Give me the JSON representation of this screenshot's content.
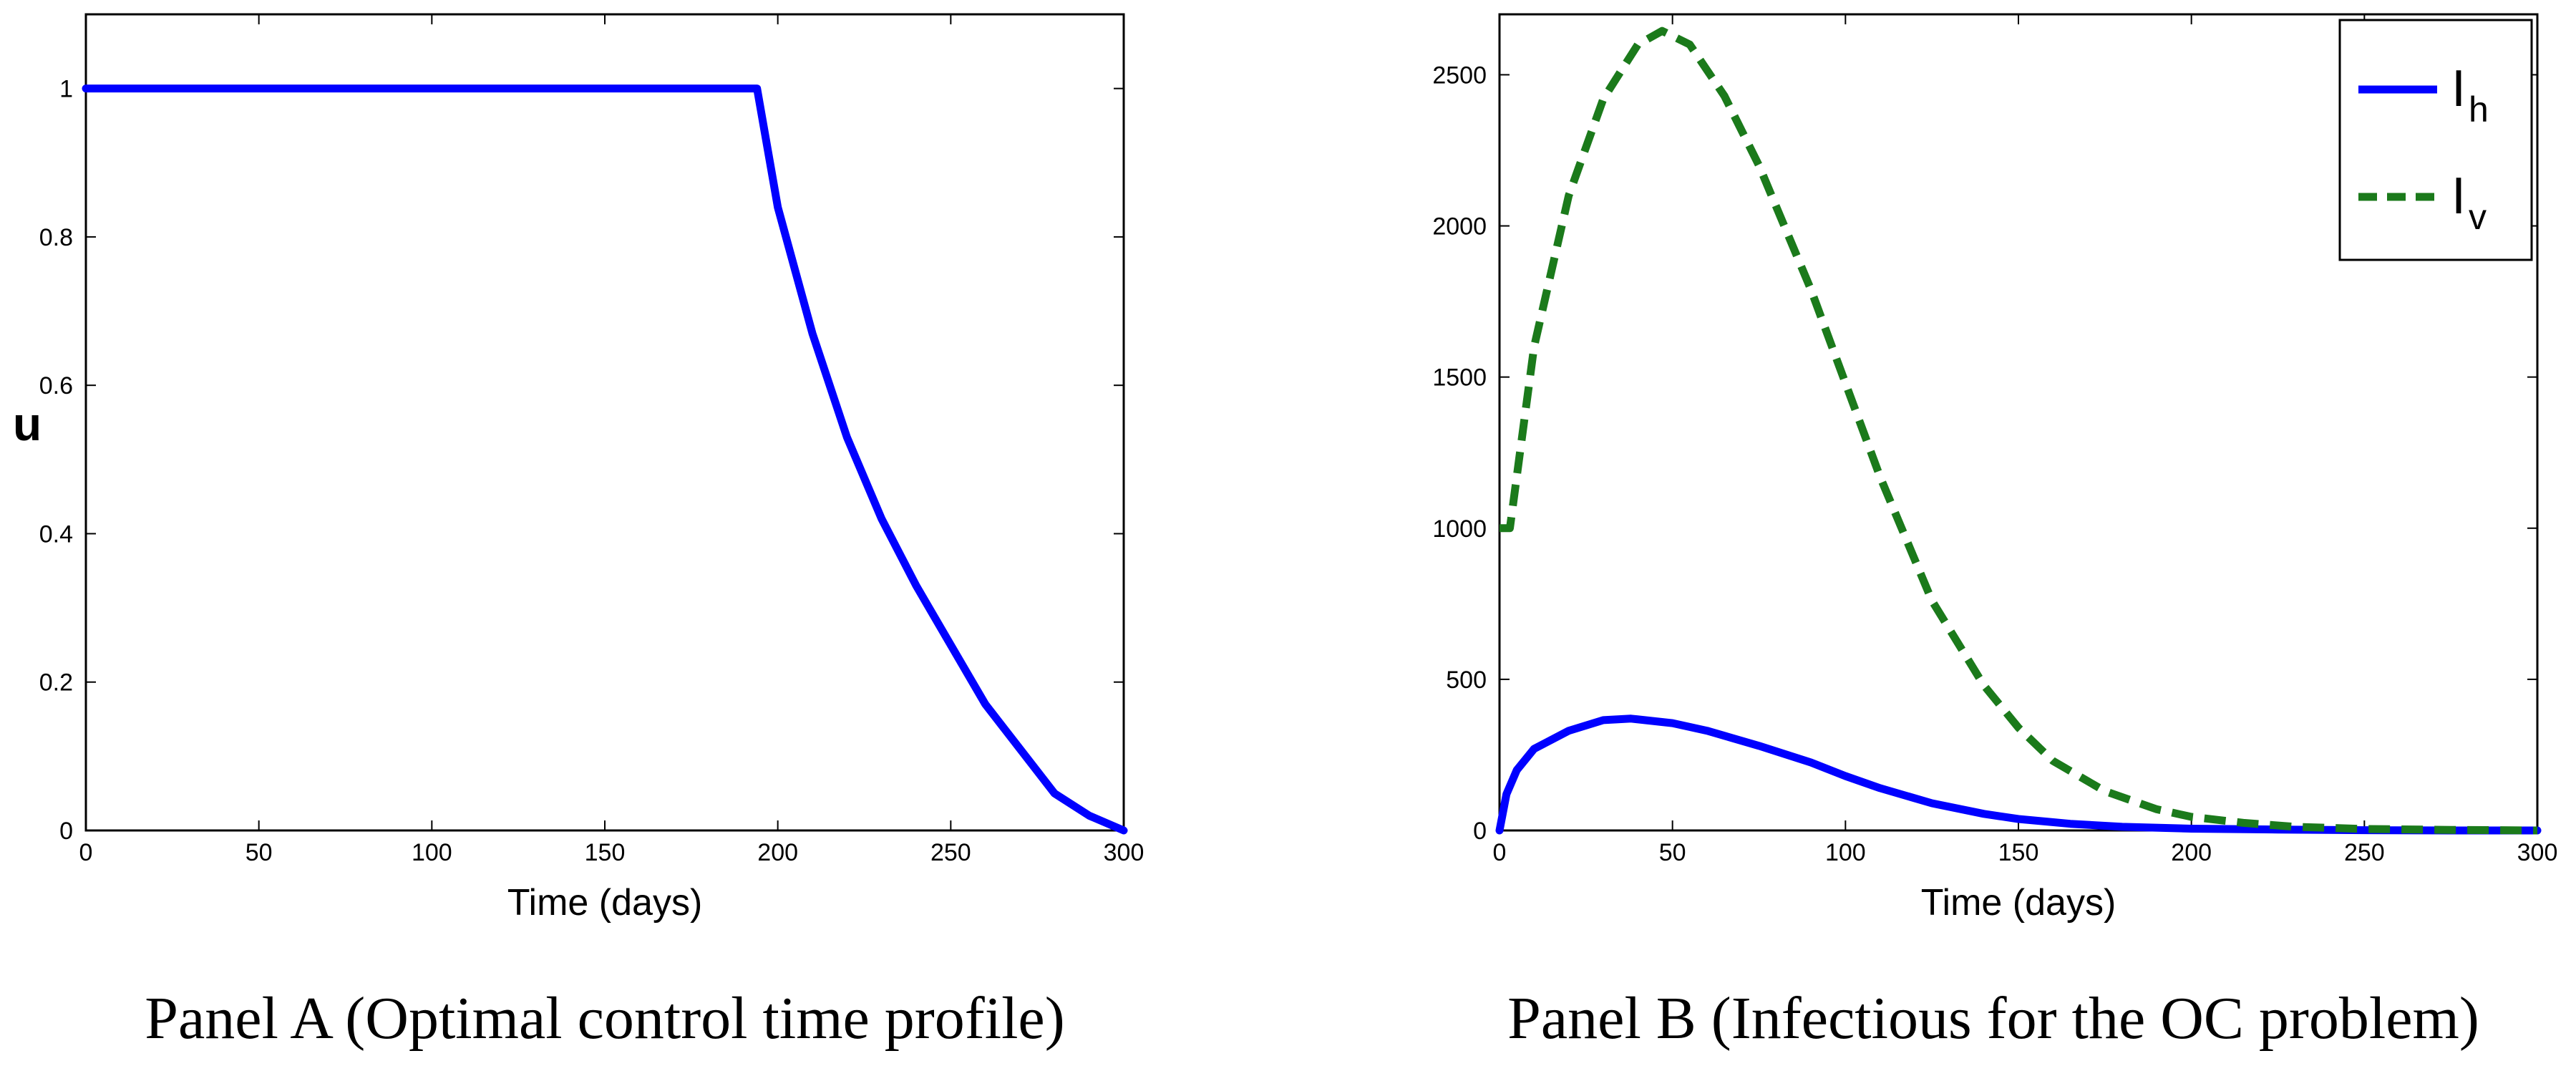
{
  "chart_data": [
    {
      "type": "line",
      "title": "",
      "xlabel": "Time (days)",
      "ylabel": "u",
      "caption": "Panel A (Optimal control time profile)",
      "xlim": [
        0,
        300
      ],
      "ylim": [
        0,
        1.1
      ],
      "xticks": [
        "0",
        "50",
        "100",
        "150",
        "200",
        "250",
        "300"
      ],
      "yticks": [
        "0",
        "0.2",
        "0.4",
        "0.6",
        "0.8",
        "1"
      ],
      "grid": false,
      "series": [
        {
          "color": "#0000ff",
          "style": "solid",
          "x": [
            0,
            50,
            100,
            150,
            194,
            200,
            210,
            220,
            230,
            240,
            250,
            260,
            270,
            280,
            290,
            300
          ],
          "y": [
            1,
            1,
            1,
            1,
            1,
            0.84,
            0.67,
            0.53,
            0.42,
            0.33,
            0.25,
            0.17,
            0.11,
            0.05,
            0.02,
            0
          ]
        }
      ]
    },
    {
      "type": "line",
      "title": "",
      "xlabel": "Time (days)",
      "ylabel": "",
      "caption": "Panel B (Infectious for the OC problem)",
      "xlim": [
        0,
        300
      ],
      "ylim": [
        0,
        2700
      ],
      "xticks": [
        "0",
        "50",
        "100",
        "150",
        "200",
        "250",
        "300"
      ],
      "yticks": [
        "0",
        "500",
        "1000",
        "1500",
        "2000",
        "2500"
      ],
      "grid": false,
      "legend": "top-right",
      "series": [
        {
          "name": "I",
          "sub": "h",
          "color": "#0000ff",
          "style": "solid",
          "x": [
            0,
            2,
            5,
            10,
            20,
            30,
            38,
            50,
            60,
            75,
            90,
            100,
            110,
            125,
            140,
            150,
            165,
            180,
            200,
            225,
            250,
            275,
            300
          ],
          "y": [
            0,
            120,
            200,
            270,
            330,
            365,
            370,
            355,
            330,
            280,
            225,
            180,
            140,
            90,
            55,
            38,
            22,
            12,
            6,
            3,
            1,
            0,
            0
          ]
        },
        {
          "name": "I",
          "sub": "v",
          "color": "#1b7a1b",
          "style": "dashed",
          "x": [
            0,
            3,
            10,
            20,
            30,
            40,
            47,
            55,
            65,
            75,
            90,
            100,
            110,
            125,
            140,
            150,
            160,
            175,
            190,
            200,
            215,
            230,
            250,
            275,
            300
          ],
          "y": [
            1000,
            1000,
            1600,
            2100,
            2420,
            2600,
            2645,
            2600,
            2430,
            2200,
            1790,
            1480,
            1170,
            760,
            480,
            340,
            230,
            130,
            70,
            45,
            25,
            12,
            5,
            2,
            0
          ]
        }
      ]
    }
  ]
}
